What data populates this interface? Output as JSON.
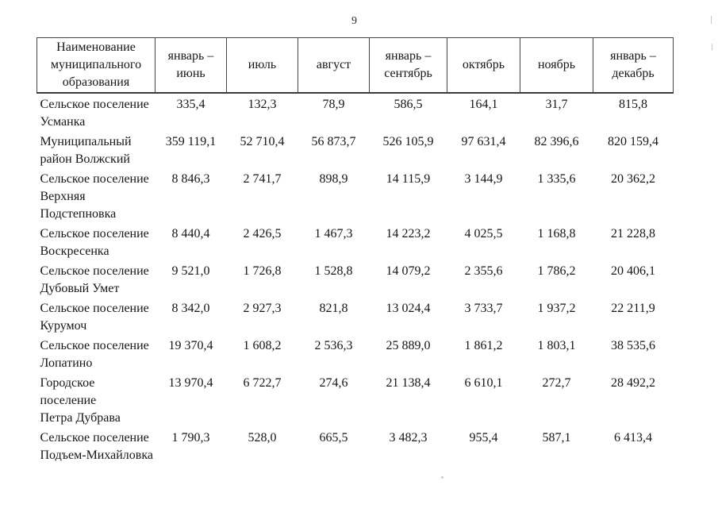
{
  "page_number": "9",
  "table": {
    "column_headers": [
      "Наименование\nмуниципального\nобразования",
      "январь –\nиюнь",
      "июль",
      "август",
      "январь –\nсентябрь",
      "октябрь",
      "ноябрь",
      "январь –\nдекабрь"
    ],
    "rows": [
      {
        "name": "Сельское поселение\nУсманка",
        "values": [
          "335,4",
          "132,3",
          "78,9",
          "586,5",
          "164,1",
          "31,7",
          "815,8"
        ]
      },
      {
        "name": "Муниципальный\nрайон Волжский",
        "values": [
          "359 119,1",
          "52 710,4",
          "56 873,7",
          "526 105,9",
          "97 631,4",
          "82 396,6",
          "820 159,4"
        ]
      },
      {
        "name": "Сельское поселение\nВерхняя\nПодстепновка",
        "values": [
          "8 846,3",
          "2 741,7",
          "898,9",
          "14 115,9",
          "3 144,9",
          "1 335,6",
          "20 362,2"
        ]
      },
      {
        "name": "Сельское поселение\nВоскресенка",
        "values": [
          "8 440,4",
          "2 426,5",
          "1 467,3",
          "14 223,2",
          "4 025,5",
          "1 168,8",
          "21 228,8"
        ]
      },
      {
        "name": "Сельское поселение\nДубовый Умет",
        "values": [
          "9 521,0",
          "1 726,8",
          "1 528,8",
          "14 079,2",
          "2 355,6",
          "1 786,2",
          "20 406,1"
        ]
      },
      {
        "name": "Сельское поселение\nКурумоч",
        "values": [
          "8 342,0",
          "2 927,3",
          "821,8",
          "13 024,4",
          "3 733,7",
          "1 937,2",
          "22 211,9"
        ]
      },
      {
        "name": "Сельское поселение\nЛопатино",
        "values": [
          "19 370,4",
          "1 608,2",
          "2 536,3",
          "25 889,0",
          "1 861,2",
          "1 803,1",
          "38 535,6"
        ]
      },
      {
        "name": "Городское поселение\nПетра Дубрава",
        "values": [
          "13 970,4",
          "6 722,7",
          "274,6",
          "21 138,4",
          "6 610,1",
          "272,7",
          "28 492,2"
        ]
      },
      {
        "name": "Сельское поселение\nПодъем-Михайловка",
        "values": [
          "1 790,3",
          "528,0",
          "665,5",
          "3 482,3",
          "955,4",
          "587,1",
          "6 413,4"
        ]
      }
    ]
  }
}
